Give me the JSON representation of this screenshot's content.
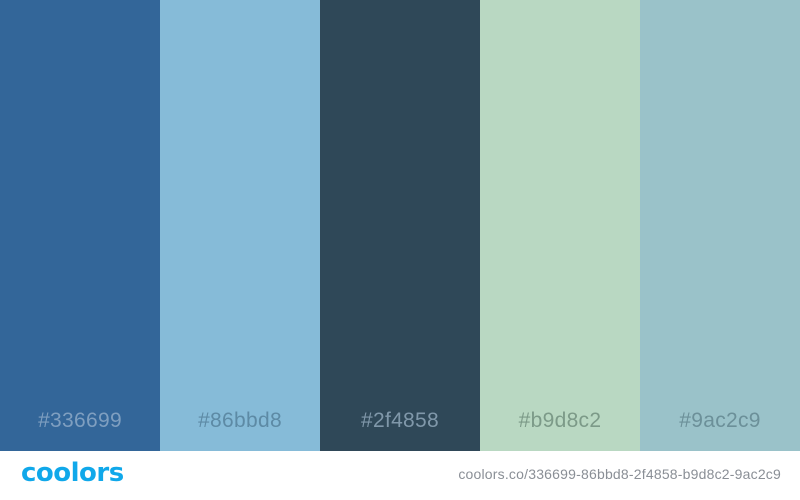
{
  "palette": {
    "swatches": [
      {
        "hex": "#336699",
        "color": "#336699",
        "label_color": "#7f9fc0"
      },
      {
        "hex": "#86bbd8",
        "color": "#86bbd8",
        "label_color": "#5d8aa5"
      },
      {
        "hex": "#2f4858",
        "color": "#2f4858",
        "label_color": "#8098aa"
      },
      {
        "hex": "#b9d8c2",
        "color": "#b9d8c2",
        "label_color": "#7c9a88"
      },
      {
        "hex": "#9ac2c9",
        "color": "#9ac2c9",
        "label_color": "#6c9099"
      }
    ]
  },
  "footer": {
    "logo": "coolors",
    "url": "coolors.co/336699-86bbd8-2f4858-b9d8c2-9ac2c9"
  }
}
